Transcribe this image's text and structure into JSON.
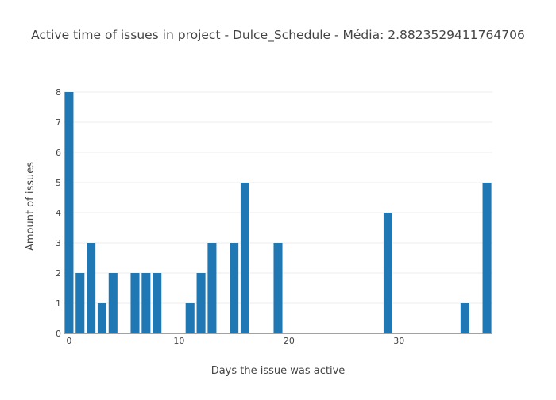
{
  "chart_data": {
    "type": "bar",
    "title": "Active time of issues in project - Dulce_Schedule - Média: 2.8823529411764706",
    "xlabel": "Days the issue was active",
    "ylabel": "Amount of issues",
    "x": [
      0,
      1,
      2,
      3,
      4,
      6,
      7,
      8,
      11,
      12,
      13,
      15,
      16,
      19,
      29,
      36,
      38
    ],
    "values": [
      8,
      2,
      3,
      1,
      2,
      2,
      2,
      2,
      1,
      2,
      3,
      3,
      5,
      3,
      4,
      1,
      5
    ],
    "xlim": [
      -0.5,
      38.5
    ],
    "ylim": [
      0,
      8
    ],
    "xticks": [
      0,
      10,
      20,
      30
    ],
    "yticks": [
      0,
      1,
      2,
      3,
      4,
      5,
      6,
      7,
      8
    ],
    "grid": true,
    "bar_color": "#1f77b4",
    "grid_color": "#eeeeee"
  }
}
